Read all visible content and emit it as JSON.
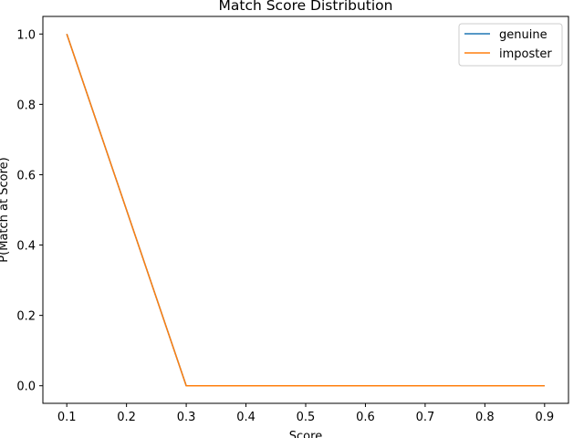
{
  "chart_data": {
    "type": "line",
    "title": "Match Score Distribution",
    "xlabel": "Score",
    "ylabel": "P(Match at Score)",
    "x": [
      0.1,
      0.2,
      0.3,
      0.4,
      0.5,
      0.6,
      0.7,
      0.8,
      0.9
    ],
    "series": [
      {
        "name": "genuine",
        "color": "#1f77b4",
        "values": [
          1.0,
          0.5,
          0.0,
          0.0,
          0.0,
          0.0,
          0.0,
          0.0,
          0.0
        ]
      },
      {
        "name": "imposter",
        "color": "#ff7f0e",
        "values": [
          1.0,
          0.5,
          0.0,
          0.0,
          0.0,
          0.0,
          0.0,
          0.0,
          0.0
        ]
      }
    ],
    "xticks": [
      "0.1",
      "0.2",
      "0.3",
      "0.4",
      "0.5",
      "0.6",
      "0.7",
      "0.8",
      "0.9"
    ],
    "yticks": [
      "0.0",
      "0.2",
      "0.4",
      "0.6",
      "0.8",
      "1.0"
    ],
    "xlim": [
      0.06,
      0.94
    ],
    "ylim": [
      -0.05,
      1.05
    ],
    "grid": false,
    "legend_position": "top-right"
  }
}
